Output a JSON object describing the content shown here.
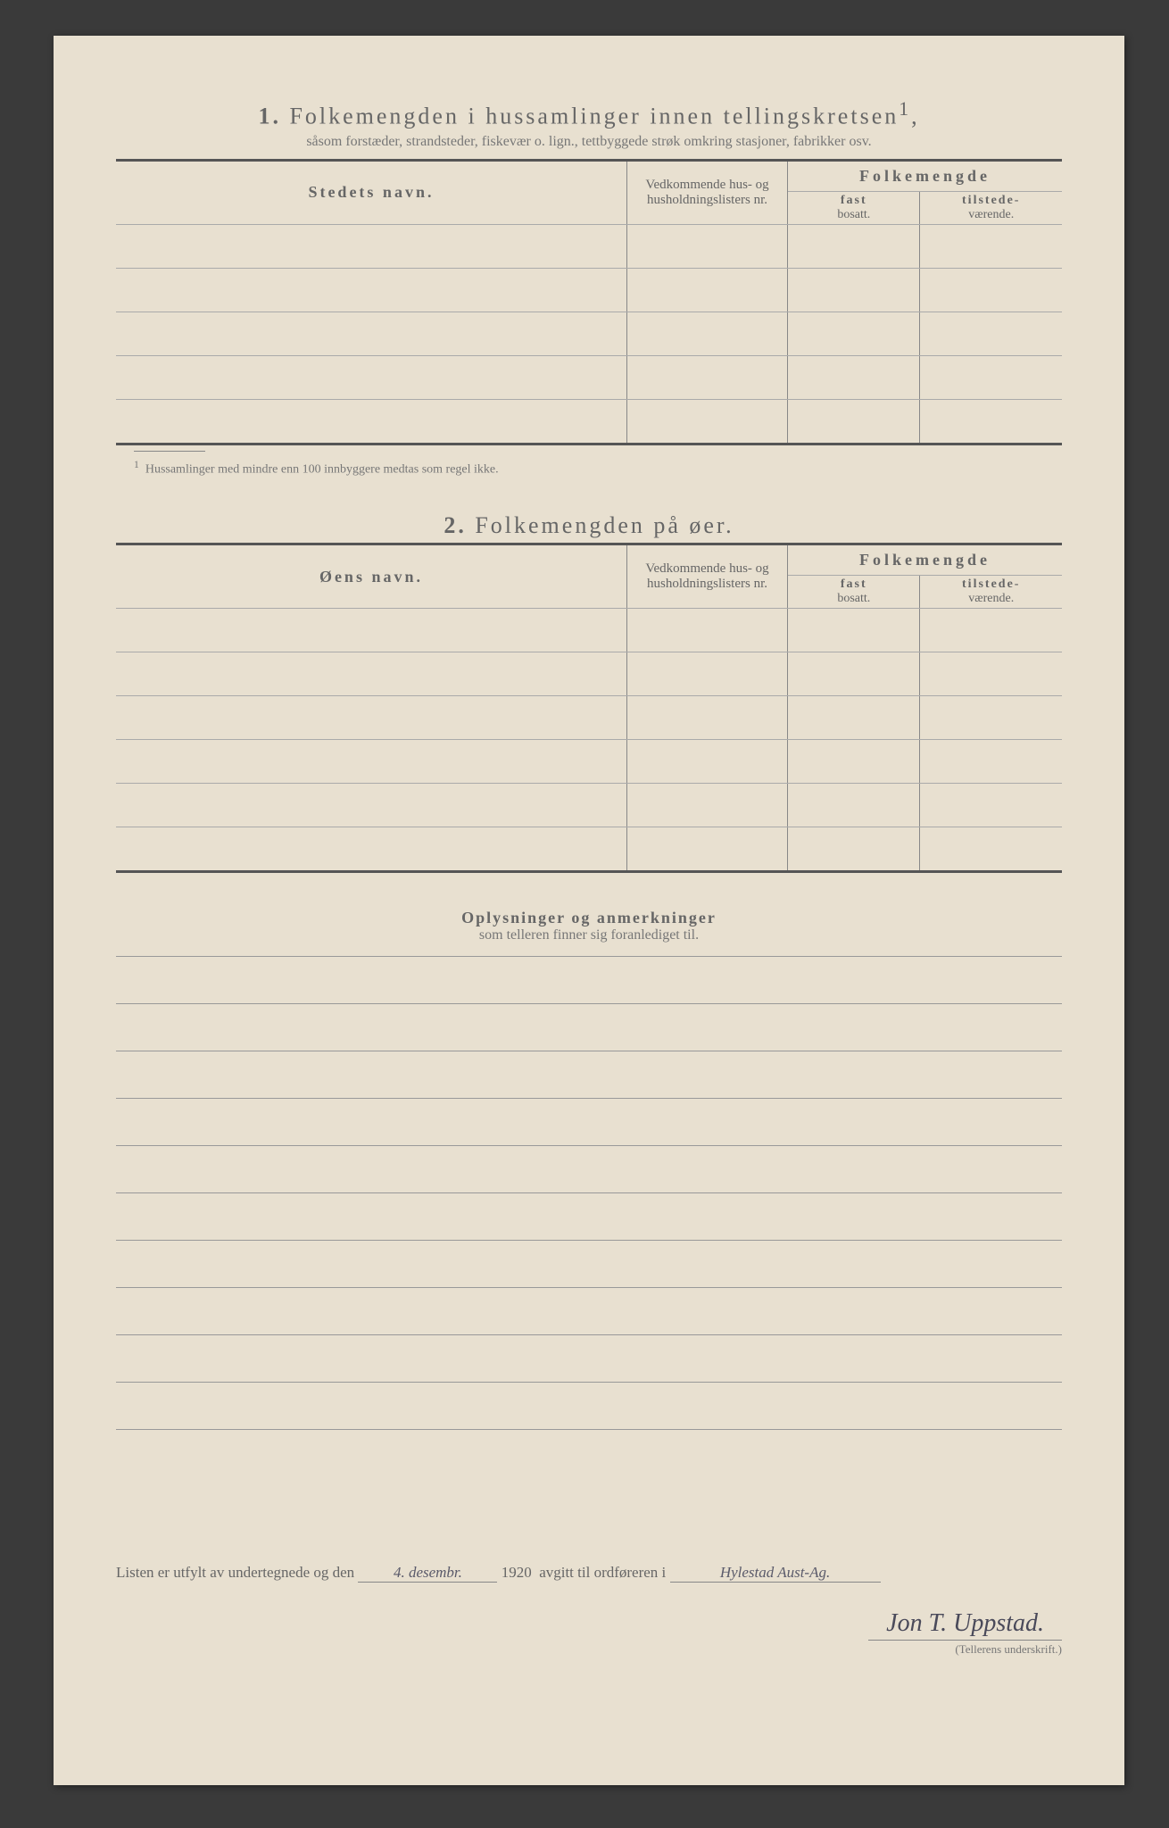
{
  "section1": {
    "number": "1.",
    "title": "Folkemengden i hussamlinger innen tellingskretsen",
    "title_sup": "1",
    "subtitle": "såsom forstæder, strandsteder, fiskevær o. lign., tettbyggede strøk omkring stasjoner, fabrikker osv.",
    "col_name": "Stedets navn.",
    "col_nr": "Vedkommende hus- og husholdningslisters nr.",
    "col_group": "Folkemengde",
    "col_fast_b": "fast",
    "col_fast": "bosatt.",
    "col_til_b": "tilstede-",
    "col_til": "værende.",
    "footnote": "Hussamlinger med mindre enn 100 innbyggere medtas som regel ikke.",
    "footnote_mark": "1"
  },
  "section2": {
    "number": "2.",
    "title": "Folkemengden på øer.",
    "col_name": "Øens navn.",
    "col_nr": "Vedkommende hus- og husholdningslisters nr.",
    "col_group": "Folkemengde",
    "col_fast_b": "fast",
    "col_fast": "bosatt.",
    "col_til_b": "tilstede-",
    "col_til": "værende."
  },
  "notes": {
    "title": "Oplysninger og anmerkninger",
    "subtitle": "som telleren finner sig foranlediget til."
  },
  "bottom": {
    "text1": "Listen er utfylt av undertegnede og den",
    "date": "4. desembr.",
    "year": "1920",
    "text2": "avgitt til ordføreren i",
    "place": "Hylestad  Aust-Ag.",
    "signature": "Jon T. Uppstad.",
    "sig_label": "(Tellerens underskrift.)"
  },
  "layout": {
    "rows_section1": 5,
    "rows_section2": 6,
    "note_lines": 10
  }
}
